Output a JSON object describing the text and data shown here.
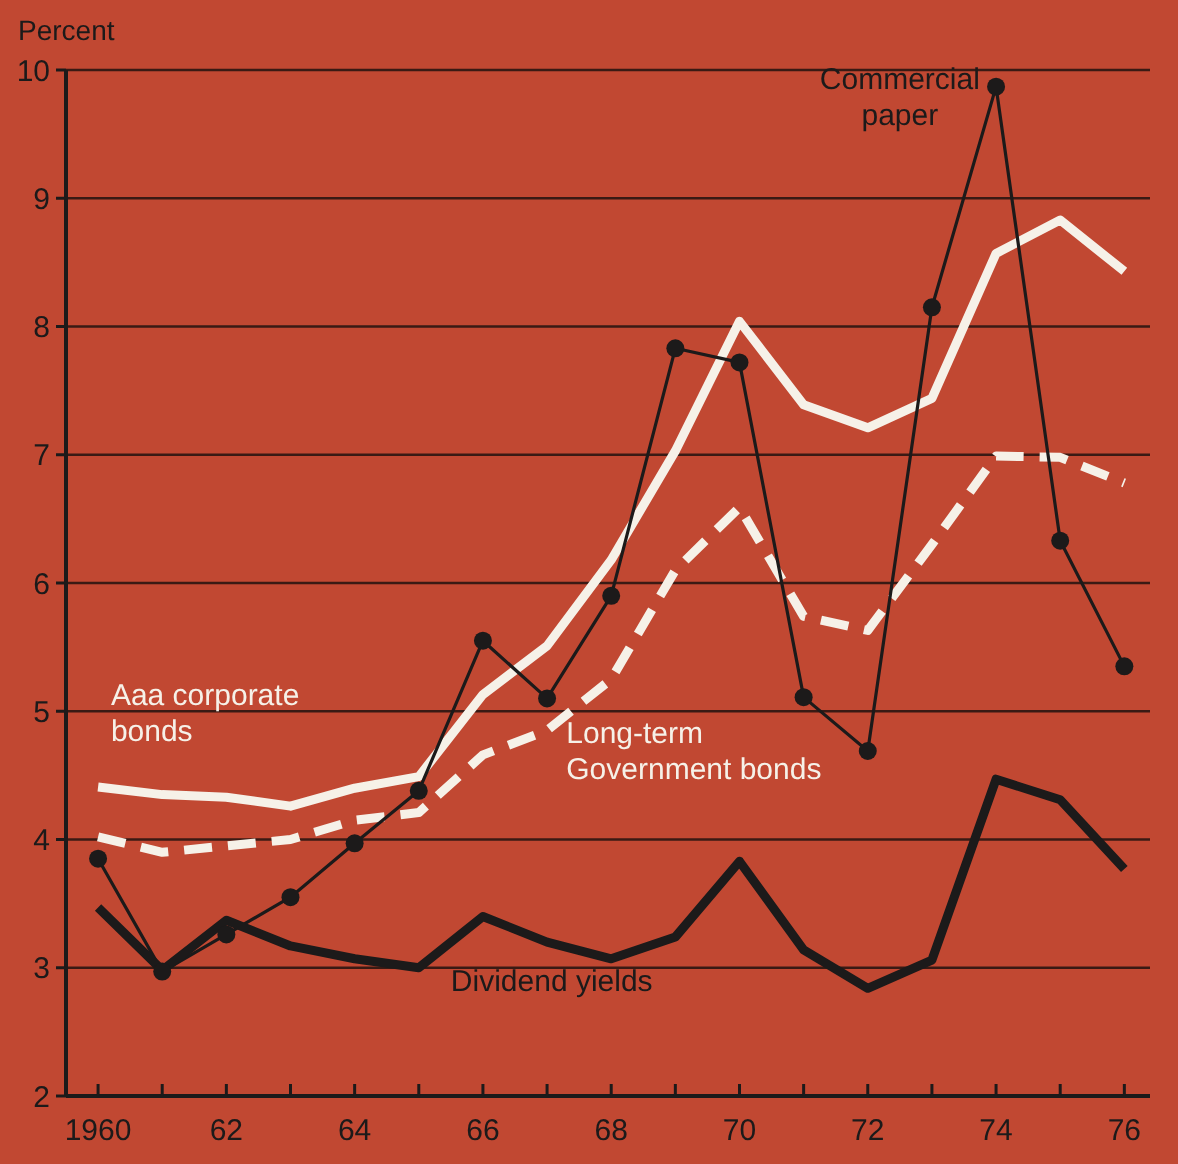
{
  "chart_data": {
    "type": "line",
    "ylabel": "Percent",
    "x": [
      1960,
      1961,
      1962,
      1963,
      1964,
      1965,
      1966,
      1967,
      1968,
      1969,
      1970,
      1971,
      1972,
      1973,
      1974,
      1975,
      1976
    ],
    "xlim": [
      1959.5,
      1976.4
    ],
    "ylim": [
      2,
      10
    ],
    "yticks": [
      2,
      3,
      4,
      5,
      6,
      7,
      8,
      9,
      10
    ],
    "xticks": [
      {
        "value": 1960,
        "label": "1960"
      },
      {
        "value": 1961,
        "label": null
      },
      {
        "value": 1962,
        "label": "62"
      },
      {
        "value": 1963,
        "label": null
      },
      {
        "value": 1964,
        "label": "64"
      },
      {
        "value": 1965,
        "label": null
      },
      {
        "value": 1966,
        "label": "66"
      },
      {
        "value": 1967,
        "label": null
      },
      {
        "value": 1968,
        "label": "68"
      },
      {
        "value": 1969,
        "label": null
      },
      {
        "value": 1970,
        "label": "70"
      },
      {
        "value": 1971,
        "label": null
      },
      {
        "value": 1972,
        "label": "72"
      },
      {
        "value": 1973,
        "label": null
      },
      {
        "value": 1974,
        "label": "74"
      },
      {
        "value": 1975,
        "label": null
      },
      {
        "value": 1976,
        "label": "76"
      }
    ],
    "grid": "y",
    "legend": false,
    "series": [
      {
        "name": "Aaa corporate bonds",
        "color": "#f6f1e8",
        "line_style": "solid",
        "values": [
          4.41,
          4.35,
          4.33,
          4.26,
          4.4,
          4.49,
          5.13,
          5.51,
          6.18,
          7.03,
          8.04,
          7.39,
          7.21,
          7.44,
          8.57,
          8.83,
          8.43
        ]
      },
      {
        "name": "Long-term Government bonds",
        "color": "#f6f1e8",
        "line_style": "dashed",
        "values": [
          4.02,
          3.9,
          3.95,
          4.0,
          4.15,
          4.21,
          4.66,
          4.85,
          5.25,
          6.1,
          6.59,
          5.74,
          5.63,
          6.3,
          6.99,
          6.98,
          6.78
        ]
      },
      {
        "name": "Commercial paper",
        "color": "#1c1a1a",
        "line_style": "solid",
        "marker": "circle",
        "values": [
          3.85,
          2.97,
          3.26,
          3.55,
          3.97,
          4.38,
          5.55,
          5.1,
          5.9,
          7.83,
          7.72,
          5.11,
          4.69,
          8.15,
          9.87,
          6.33,
          5.35
        ]
      },
      {
        "name": "Dividend yields",
        "color": "#1c1a1a",
        "line_style": "solid",
        "values": [
          3.47,
          2.98,
          3.37,
          3.17,
          3.07,
          3.0,
          3.4,
          3.2,
          3.07,
          3.24,
          3.83,
          3.14,
          2.84,
          3.06,
          4.47,
          4.31,
          3.77
        ]
      }
    ]
  }
}
